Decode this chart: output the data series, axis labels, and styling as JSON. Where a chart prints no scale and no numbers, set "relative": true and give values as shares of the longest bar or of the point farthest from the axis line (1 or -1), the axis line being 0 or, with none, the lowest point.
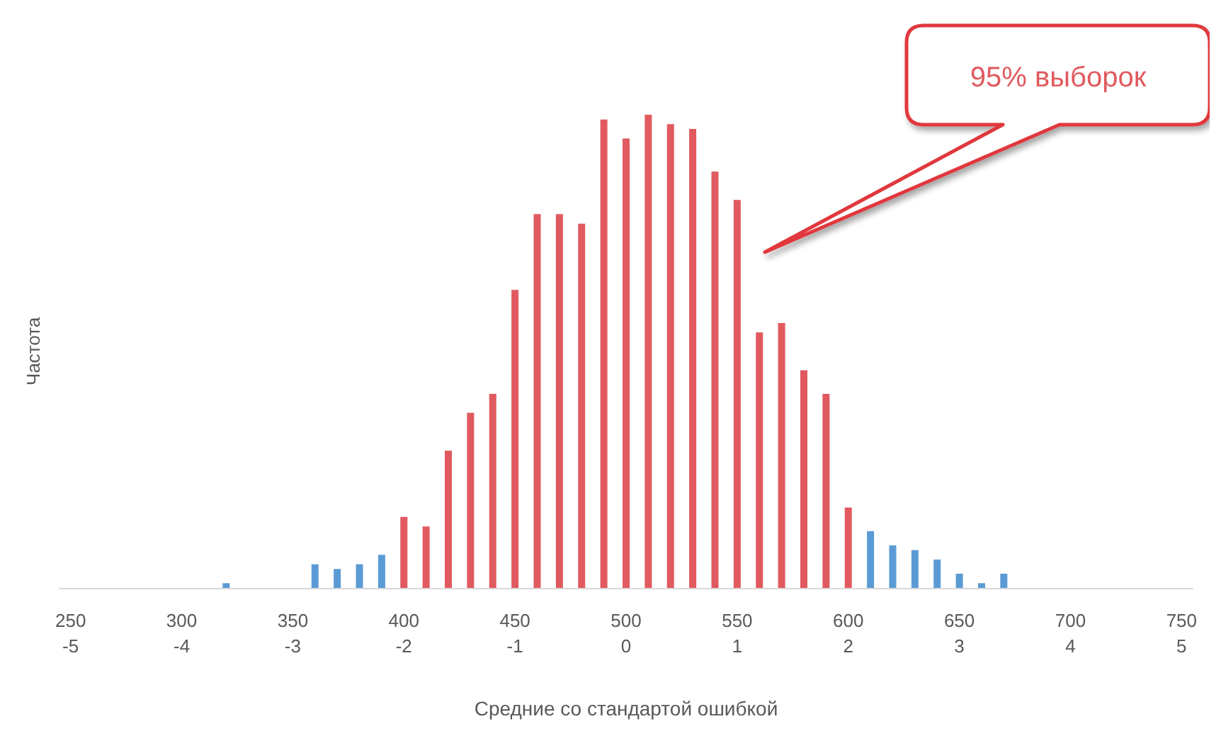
{
  "chart_data": {
    "type": "bar",
    "relative": true,
    "xlabel": "Средние со стандартой ошибкой",
    "ylabel": "Частота",
    "annotations": [
      "95% выборок"
    ],
    "categories": [
      "250\n-5",
      null,
      null,
      null,
      null,
      "300\n-4",
      null,
      null,
      null,
      null,
      "350\n-3",
      null,
      null,
      null,
      null,
      "400\n-2",
      null,
      null,
      null,
      null,
      "450\n-1",
      null,
      null,
      null,
      null,
      "500\n0",
      null,
      null,
      null,
      null,
      "550\n1",
      null,
      null,
      null,
      null,
      "600\n2",
      null,
      null,
      null,
      null,
      "650\n3",
      null,
      null,
      null,
      null,
      "700\n4",
      null,
      null,
      null,
      null,
      "750\n5"
    ],
    "values": [
      0,
      0,
      0,
      0,
      0,
      0,
      0,
      0.01,
      0,
      0,
      0,
      0.05,
      0.04,
      0.05,
      0.07,
      0.15,
      0.13,
      0.29,
      0.37,
      0.41,
      0.63,
      0.79,
      0.79,
      0.77,
      0.99,
      0.95,
      1,
      0.98,
      0.97,
      0.88,
      0.82,
      0.54,
      0.56,
      0.46,
      0.41,
      0.17,
      0.12,
      0.09,
      0.08,
      0.06,
      0.03,
      0.01,
      0.03,
      0,
      0,
      0,
      0,
      0,
      0,
      0,
      0
    ],
    "colors": [
      "#5b9bd5",
      "#5b9bd5",
      "#5b9bd5",
      "#5b9bd5",
      "#5b9bd5",
      "#5b9bd5",
      "#5b9bd5",
      "#5b9bd5",
      "#5b9bd5",
      "#5b9bd5",
      "#5b9bd5",
      "#5b9bd5",
      "#5b9bd5",
      "#5b9bd5",
      "#5b9bd5",
      "#e05a5f",
      "#e05a5f",
      "#e05a5f",
      "#e05a5f",
      "#e05a5f",
      "#e05a5f",
      "#e05a5f",
      "#e05a5f",
      "#e05a5f",
      "#e05a5f",
      "#e05a5f",
      "#e05a5f",
      "#e05a5f",
      "#e05a5f",
      "#e05a5f",
      "#e05a5f",
      "#e05a5f",
      "#e05a5f",
      "#e05a5f",
      "#e05a5f",
      "#e05a5f",
      "#5b9bd5",
      "#5b9bd5",
      "#5b9bd5",
      "#5b9bd5",
      "#5b9bd5",
      "#5b9bd5",
      "#5b9bd5",
      "#5b9bd5",
      "#5b9bd5",
      "#5b9bd5",
      "#5b9bd5",
      "#5b9bd5",
      "#5b9bd5",
      "#5b9bd5",
      "#5b9bd5"
    ],
    "data_labels": false
  }
}
